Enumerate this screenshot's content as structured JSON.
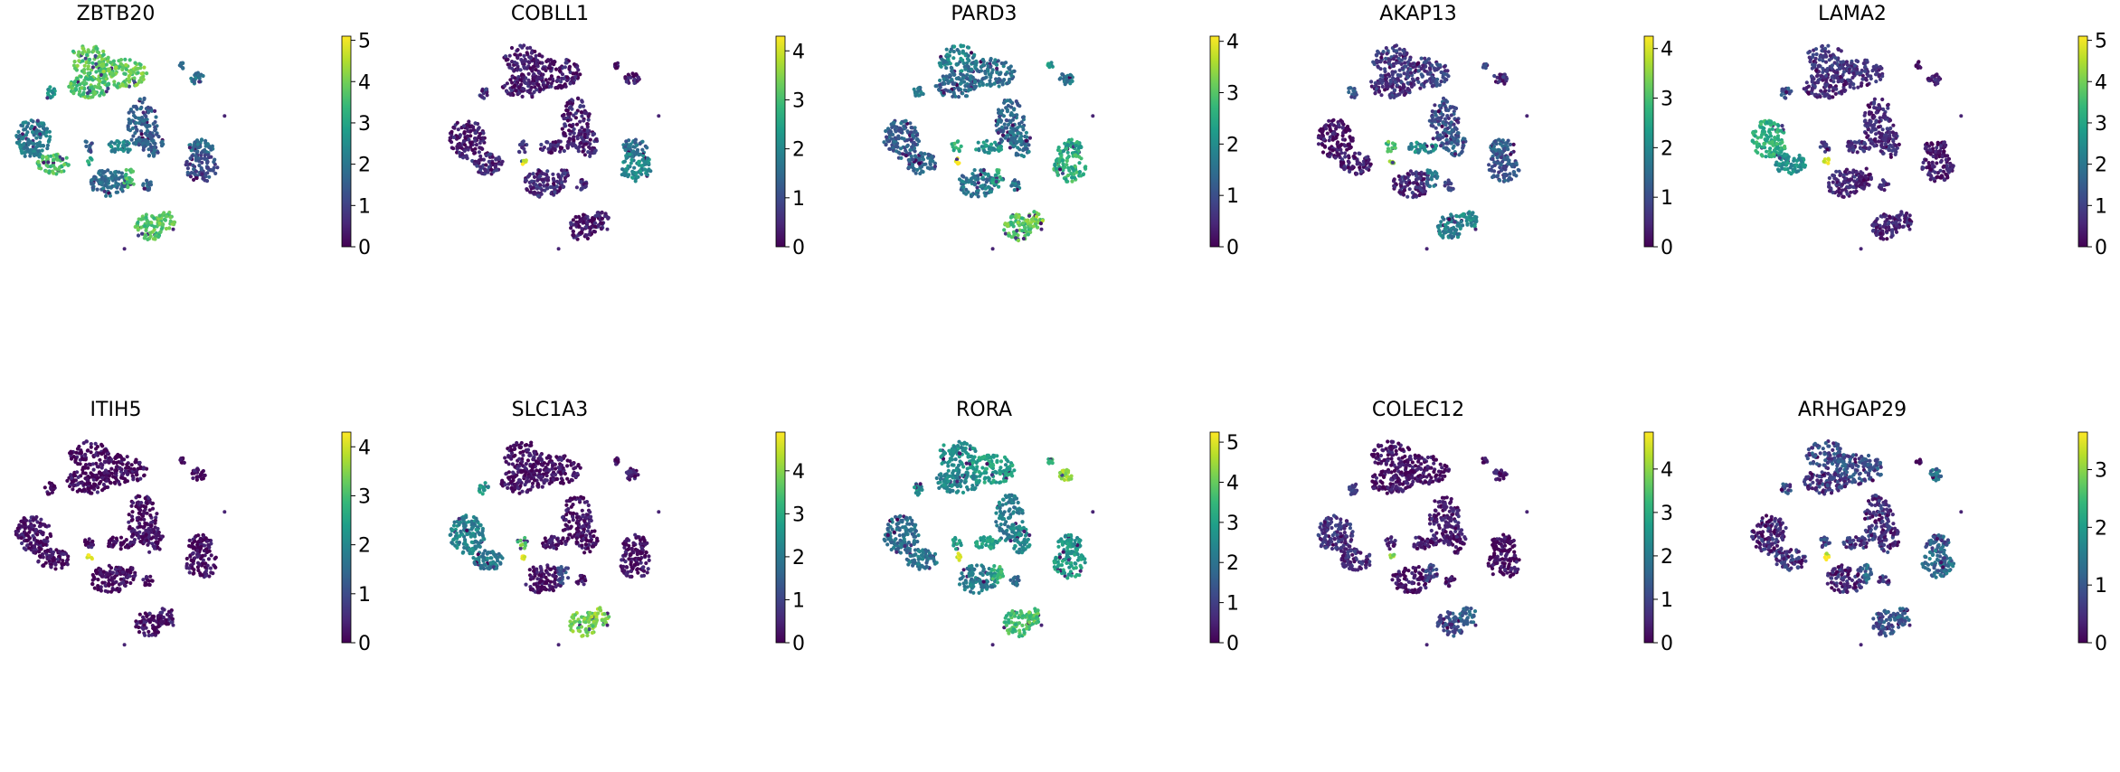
{
  "figure": {
    "name": "gene-expression-umap-grid"
  },
  "colormap": {
    "name": "viridis",
    "stops": [
      "#440154",
      "#482878",
      "#3e4989",
      "#31688e",
      "#26828e",
      "#1f9e89",
      "#35b779",
      "#6ece58",
      "#b5de2b",
      "#fde725"
    ]
  },
  "chart_data": [
    {
      "type": "scatter",
      "title": "ZBTB20",
      "colorbar": {
        "min": 0,
        "max": 5.1,
        "ticks": [
          0,
          1,
          2,
          3,
          4,
          5
        ]
      },
      "cluster_levels": [
        3.8,
        3.9,
        3.7,
        1.6,
        1.5,
        2.3,
        1.8,
        3.5,
        1.7,
        1.6,
        1.9,
        2.1,
        3.6,
        1.4,
        3.0,
        1.8,
        1.2,
        3.7,
        3.8,
        2.6
      ]
    },
    {
      "type": "scatter",
      "title": "COBLL1",
      "colorbar": {
        "min": 0,
        "max": 4.3,
        "ticks": [
          0,
          1,
          2,
          3,
          4
        ]
      },
      "cluster_levels": [
        0.3,
        0.3,
        0.3,
        0.4,
        0.4,
        0.4,
        0.5,
        0.6,
        0.5,
        0.3,
        0.2,
        0.3,
        0.5,
        0.6,
        4.2,
        1.5,
        2.0,
        0.3,
        0.3,
        0.6
      ]
    },
    {
      "type": "scatter",
      "title": "PARD3",
      "colorbar": {
        "min": 0,
        "max": 4.1,
        "ticks": [
          0,
          1,
          2,
          3,
          4
        ]
      },
      "cluster_levels": [
        1.8,
        1.5,
        1.4,
        1.3,
        1.5,
        2.1,
        1.6,
        2.5,
        1.6,
        2.2,
        1.5,
        1.2,
        1.3,
        2.5,
        4.0,
        2.4,
        2.6,
        3.0,
        3.2,
        1.5
      ]
    },
    {
      "type": "scatter",
      "title": "AKAP13",
      "colorbar": {
        "min": 0,
        "max": 4.25,
        "ticks": [
          0,
          1,
          2,
          3,
          4
        ]
      },
      "cluster_levels": [
        0.7,
        0.8,
        0.6,
        1.0,
        1.2,
        2.0,
        0.5,
        1.5,
        0.8,
        0.7,
        0.5,
        0.2,
        0.3,
        3.0,
        3.5,
        1.3,
        1.1,
        1.8,
        2.0,
        1.1
      ]
    },
    {
      "type": "scatter",
      "title": "LAMA2",
      "colorbar": {
        "min": 0,
        "max": 5.1,
        "ticks": [
          0,
          1,
          2,
          3,
          4,
          5
        ]
      },
      "cluster_levels": [
        0.8,
        0.8,
        0.6,
        0.6,
        0.7,
        0.7,
        0.6,
        0.3,
        0.5,
        0.3,
        0.6,
        3.2,
        2.5,
        1.0,
        5.0,
        0.3,
        0.4,
        0.5,
        0.6,
        1.3
      ]
    },
    {
      "type": "scatter",
      "title": "ITIH5",
      "colorbar": {
        "min": 0,
        "max": 4.3,
        "ticks": [
          0,
          1,
          2,
          3,
          4
        ]
      },
      "cluster_levels": [
        0.1,
        0.1,
        0.1,
        0.1,
        0.1,
        0.1,
        0.1,
        0.1,
        0.1,
        0.1,
        0.1,
        0.2,
        0.1,
        0.2,
        4.1,
        0.1,
        0.1,
        0.2,
        0.2,
        0.1
      ]
    },
    {
      "type": "scatter",
      "title": "SLC1A3",
      "colorbar": {
        "min": 0,
        "max": 4.9,
        "ticks": [
          0,
          1,
          2,
          3,
          4
        ]
      },
      "cluster_levels": [
        0.2,
        0.2,
        0.2,
        0.2,
        0.2,
        0.3,
        0.2,
        1.2,
        0.3,
        0.2,
        0.3,
        2.2,
        2.0,
        3.6,
        4.6,
        0.2,
        0.2,
        3.8,
        4.0,
        2.5
      ]
    },
    {
      "type": "scatter",
      "title": "RORA",
      "colorbar": {
        "min": 0,
        "max": 5.25,
        "ticks": [
          0,
          1,
          2,
          3,
          4,
          5
        ]
      },
      "cluster_levels": [
        2.6,
        3.0,
        2.4,
        2.2,
        2.5,
        2.9,
        2.2,
        3.4,
        1.8,
        3.5,
        4.5,
        1.9,
        2.0,
        3.0,
        5.1,
        2.7,
        2.9,
        3.6,
        3.8,
        2.6
      ]
    },
    {
      "type": "scatter",
      "title": "COLEC12",
      "colorbar": {
        "min": 0,
        "max": 4.85,
        "ticks": [
          0,
          1,
          2,
          3,
          4
        ]
      },
      "cluster_levels": [
        0.2,
        0.2,
        0.2,
        0.3,
        0.3,
        0.3,
        0.2,
        1.0,
        0.3,
        0.2,
        0.3,
        0.8,
        0.6,
        0.5,
        4.0,
        0.2,
        0.2,
        1.2,
        1.6,
        0.8
      ]
    },
    {
      "type": "scatter",
      "title": "ARHGAP29",
      "colorbar": {
        "min": 0,
        "max": 3.65,
        "ticks": [
          0,
          1,
          2,
          3
        ]
      },
      "cluster_levels": [
        0.8,
        0.9,
        0.6,
        0.5,
        0.5,
        0.6,
        0.4,
        1.2,
        0.6,
        0.3,
        1.4,
        0.4,
        0.5,
        0.7,
        3.5,
        1.0,
        1.3,
        0.9,
        1.1,
        0.8
      ]
    }
  ]
}
